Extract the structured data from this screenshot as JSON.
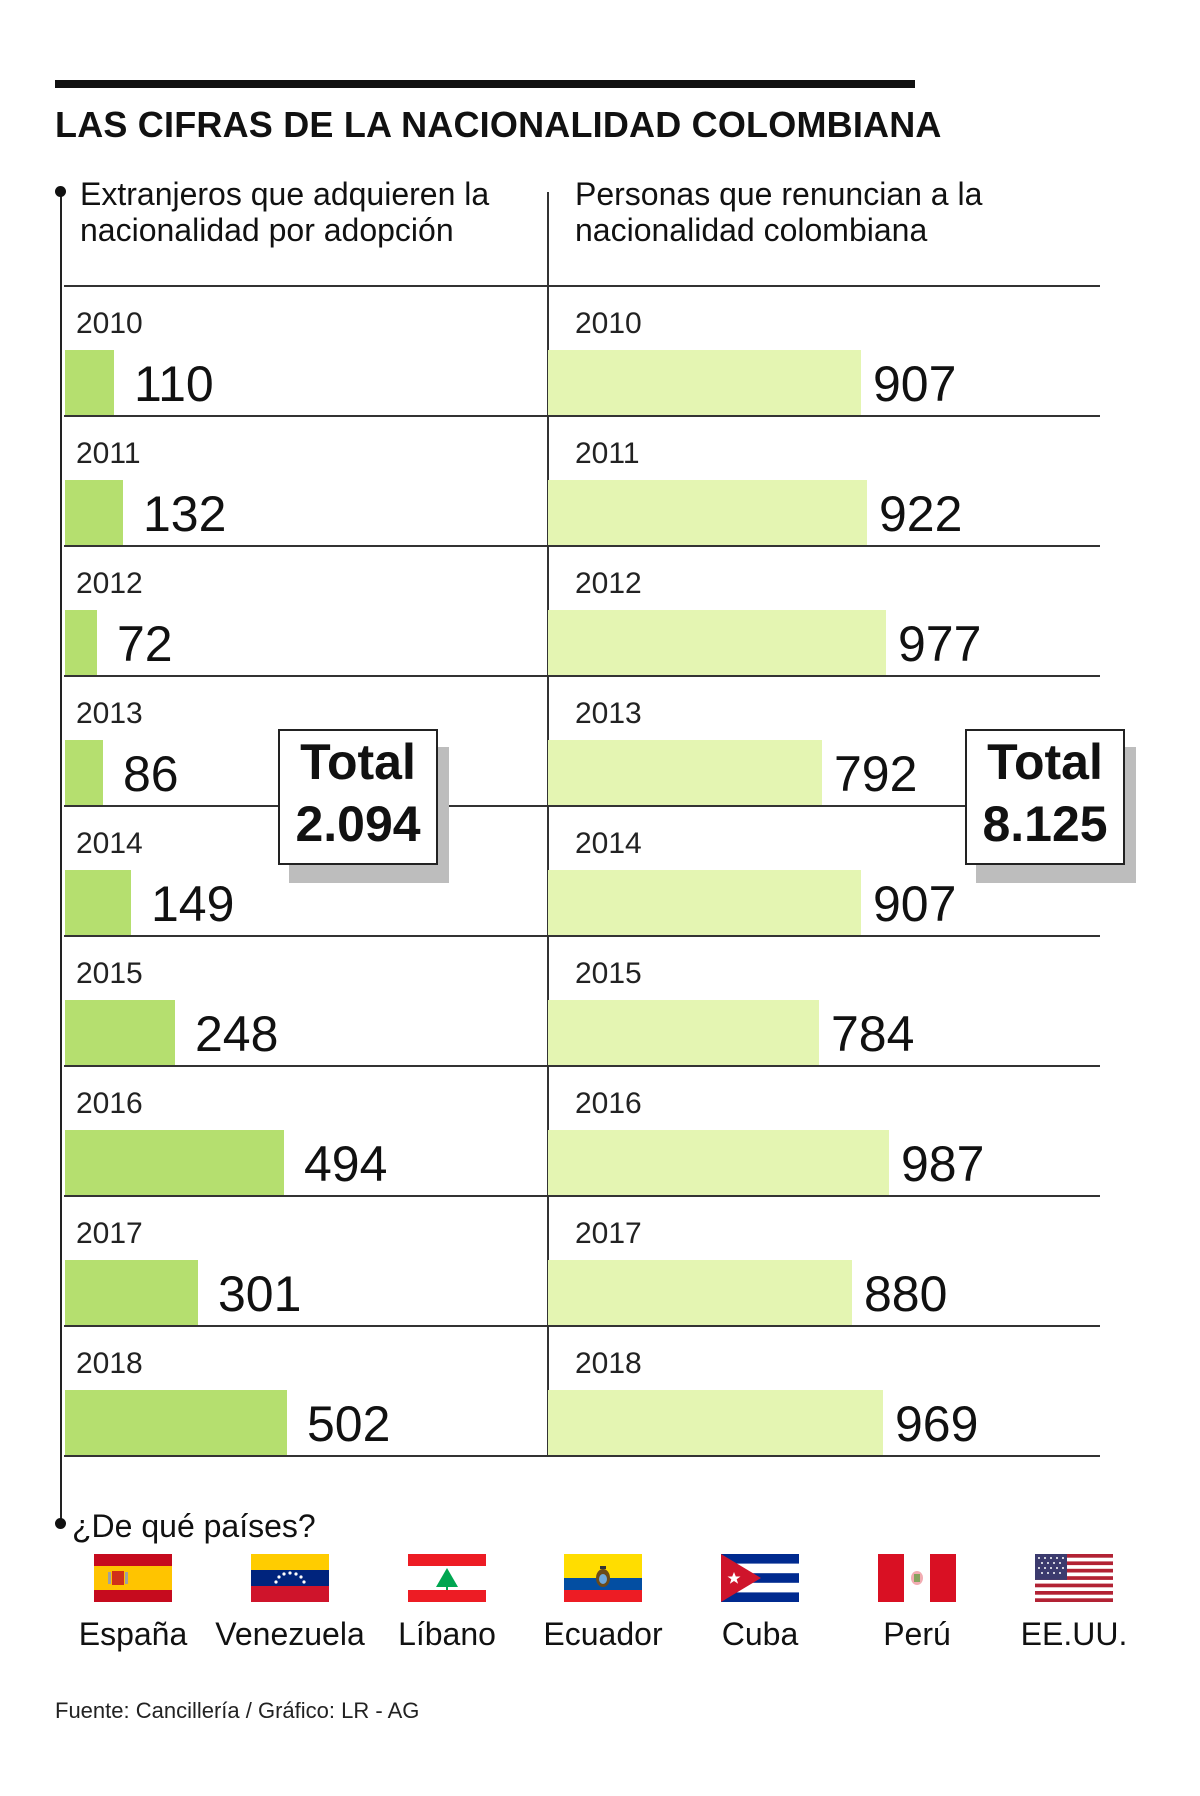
{
  "title": "LAS CIFRAS DE LA NACIONALIDAD COLOMBIANA",
  "left_header": [
    "Extranjeros que adquieren la",
    "nacionalidad por adopción"
  ],
  "right_header": [
    "Personas que renuncian a la",
    "nacionalidad colombiana"
  ],
  "totals": {
    "label": "Total",
    "left_value": "2.094",
    "right_value": "8.125"
  },
  "countries_title": "¿De qué países?",
  "countries": [
    "España",
    "Venezuela",
    "Líbano",
    "Ecuador",
    "Cuba",
    "Perú",
    "EE.UU."
  ],
  "source": "Fuente: Cancillería / Gráfico: LR - AG",
  "colors": {
    "left_bar": "#b5df6f",
    "right_bar": "#e4f5b2",
    "total_shadow": "#bdbdbd"
  },
  "chart_data": [
    {
      "type": "bar",
      "orientation": "horizontal",
      "title": "Extranjeros que adquieren la nacionalidad por adopción",
      "categories": [
        "2010",
        "2011",
        "2012",
        "2013",
        "2014",
        "2015",
        "2016",
        "2017",
        "2018"
      ],
      "values": [
        110,
        132,
        72,
        86,
        149,
        248,
        494,
        301,
        502
      ],
      "total": 2094,
      "grid": false
    },
    {
      "type": "bar",
      "orientation": "horizontal",
      "title": "Personas que renuncian a la nacionalidad colombiana",
      "categories": [
        "2010",
        "2011",
        "2012",
        "2013",
        "2014",
        "2015",
        "2016",
        "2017",
        "2018"
      ],
      "values": [
        907,
        922,
        977,
        792,
        907,
        784,
        987,
        880,
        969
      ],
      "total": 8125,
      "grid": false
    }
  ]
}
